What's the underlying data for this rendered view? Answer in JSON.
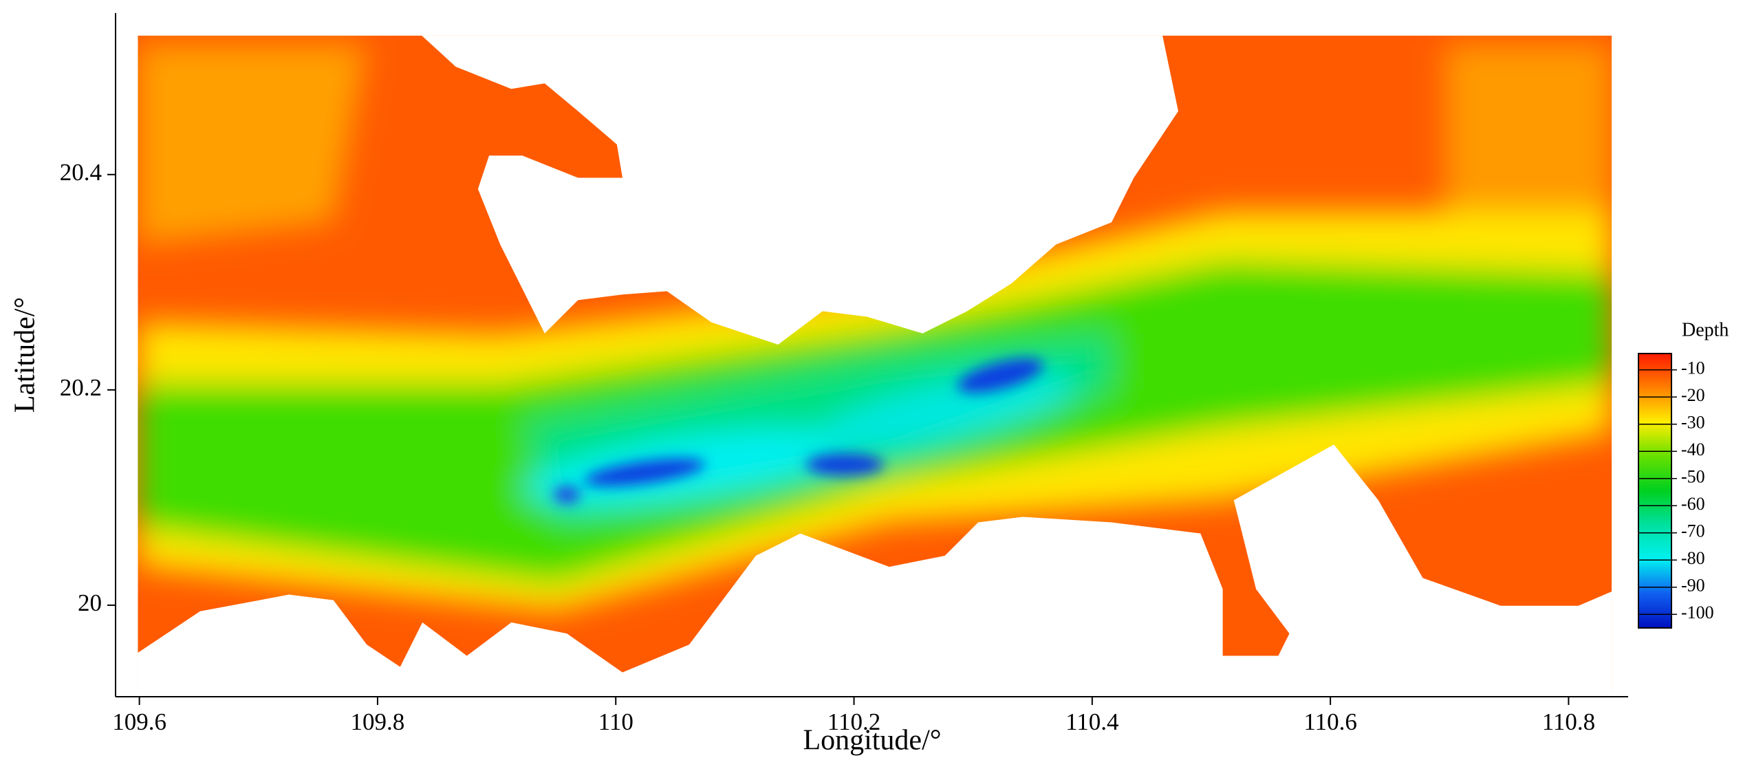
{
  "chart_data": {
    "type": "heatmap",
    "x_label": "Longitude/°",
    "y_label": "Latitude/°",
    "xlim": [
      109.58,
      110.85
    ],
    "xticks": [
      109.6,
      109.8,
      110,
      110.2,
      110.4,
      110.6,
      110.8
    ],
    "ylim": [
      19.915,
      20.55
    ],
    "yticks": [
      20,
      20.2,
      20.4
    ],
    "colorbar": {
      "title": "Depth",
      "lim": [
        -105,
        -4
      ],
      "ticks": [
        -10,
        -20,
        -30,
        -40,
        -50,
        -60,
        -70,
        -80,
        -90,
        -100
      ],
      "colors": [
        "#ff1a00",
        "#ff8000",
        "#ffee00",
        "#66e000",
        "#00d020",
        "#00e0a0",
        "#00f0f0",
        "#1060f0",
        "#0010c0"
      ]
    }
  }
}
